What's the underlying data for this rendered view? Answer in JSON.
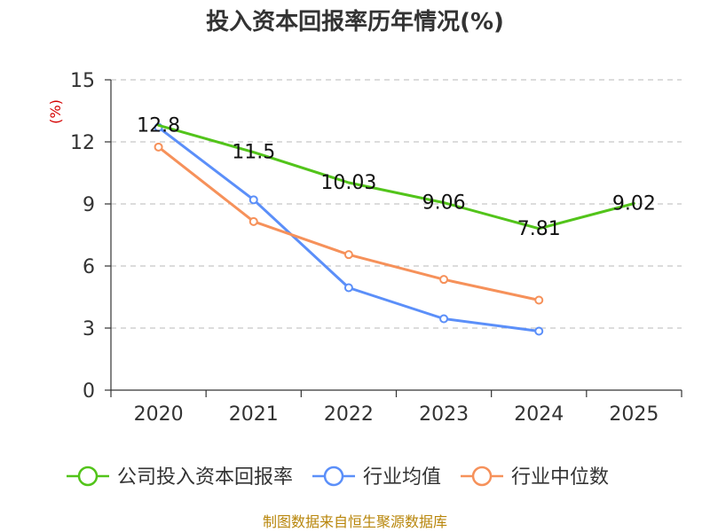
{
  "chart_data": {
    "type": "line",
    "title": "投入资本回报率历年情况(%)",
    "ylabel": "(%)",
    "xlabel": "",
    "categories": [
      "2020",
      "2021",
      "2022",
      "2023",
      "2024",
      "2025"
    ],
    "ylim": [
      0,
      15
    ],
    "yticks": [
      0,
      3,
      6,
      9,
      12,
      15
    ],
    "grid": "horizontal-dashed",
    "legend_position": "bottom",
    "series": [
      {
        "name": "公司投入资本回报率",
        "color": "#52c41a",
        "values": [
          12.8,
          11.5,
          10.03,
          9.06,
          7.81,
          9.02
        ],
        "labels": [
          "12.8",
          "11.5",
          "10.03",
          "9.06",
          "7.81",
          "9.02"
        ],
        "markers": false
      },
      {
        "name": "行业均值",
        "color": "#5b8ff9",
        "values": [
          12.7,
          9.2,
          4.95,
          3.45,
          2.85,
          null
        ],
        "markers": true
      },
      {
        "name": "行业中位数",
        "color": "#f6915a",
        "values": [
          11.75,
          8.15,
          6.55,
          5.35,
          4.35,
          null
        ],
        "markers": true
      }
    ]
  },
  "source": "制图数据来自恒生聚源数据库"
}
